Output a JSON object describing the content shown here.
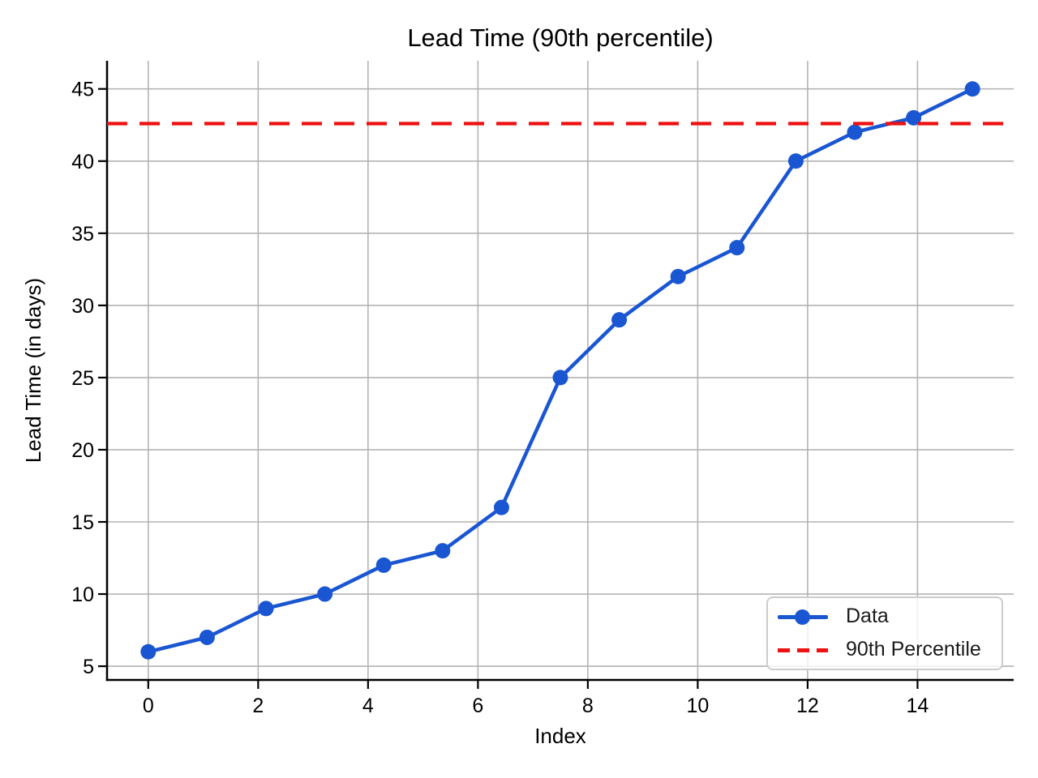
{
  "figure": {
    "title": "Lead Time (90th percentile)",
    "xlabel": "Index",
    "ylabel": "Lead Time (in days)"
  },
  "legend": {
    "position": "lower right",
    "items": [
      {
        "label": "Data",
        "glyph": "line-with-marker",
        "color": "#1a56d2"
      },
      {
        "label": "90th Percentile",
        "glyph": "dashed-line",
        "color": "#ee1111"
      }
    ]
  },
  "colors": {
    "data_line": "#1a56d2",
    "percentile_line": "#ee1111",
    "gridline": "#b3b3b3",
    "spine": "#000000",
    "legend_border": "#cccccc",
    "text": "#000000"
  },
  "chart_data": {
    "type": "line",
    "title": "Lead Time (90th percentile)",
    "xlabel": "Index",
    "ylabel": "Lead Time (in days)",
    "series": [
      {
        "name": "Data",
        "style": "solid-with-circle-markers",
        "color": "#1a56d2",
        "x": [
          0,
          1.071,
          2.143,
          3.214,
          4.286,
          5.357,
          6.429,
          7.5,
          8.571,
          9.643,
          10.714,
          11.786,
          12.857,
          13.929,
          15
        ],
        "y": [
          6,
          7,
          9,
          10,
          12,
          13,
          16,
          25,
          29,
          32,
          34,
          40,
          42,
          43,
          45
        ]
      },
      {
        "name": "90th Percentile",
        "style": "dashed-horizontal",
        "color": "#ee1111",
        "y_const": 42.6
      }
    ],
    "xticks": [
      0,
      2,
      4,
      6,
      8,
      10,
      12,
      14
    ],
    "yticks": [
      5,
      10,
      15,
      20,
      25,
      30,
      35,
      40,
      45
    ],
    "xlim": [
      -0.75,
      15.75
    ],
    "ylim": [
      4.05,
      46.95
    ],
    "grid": true,
    "legend_position": "lower right"
  }
}
